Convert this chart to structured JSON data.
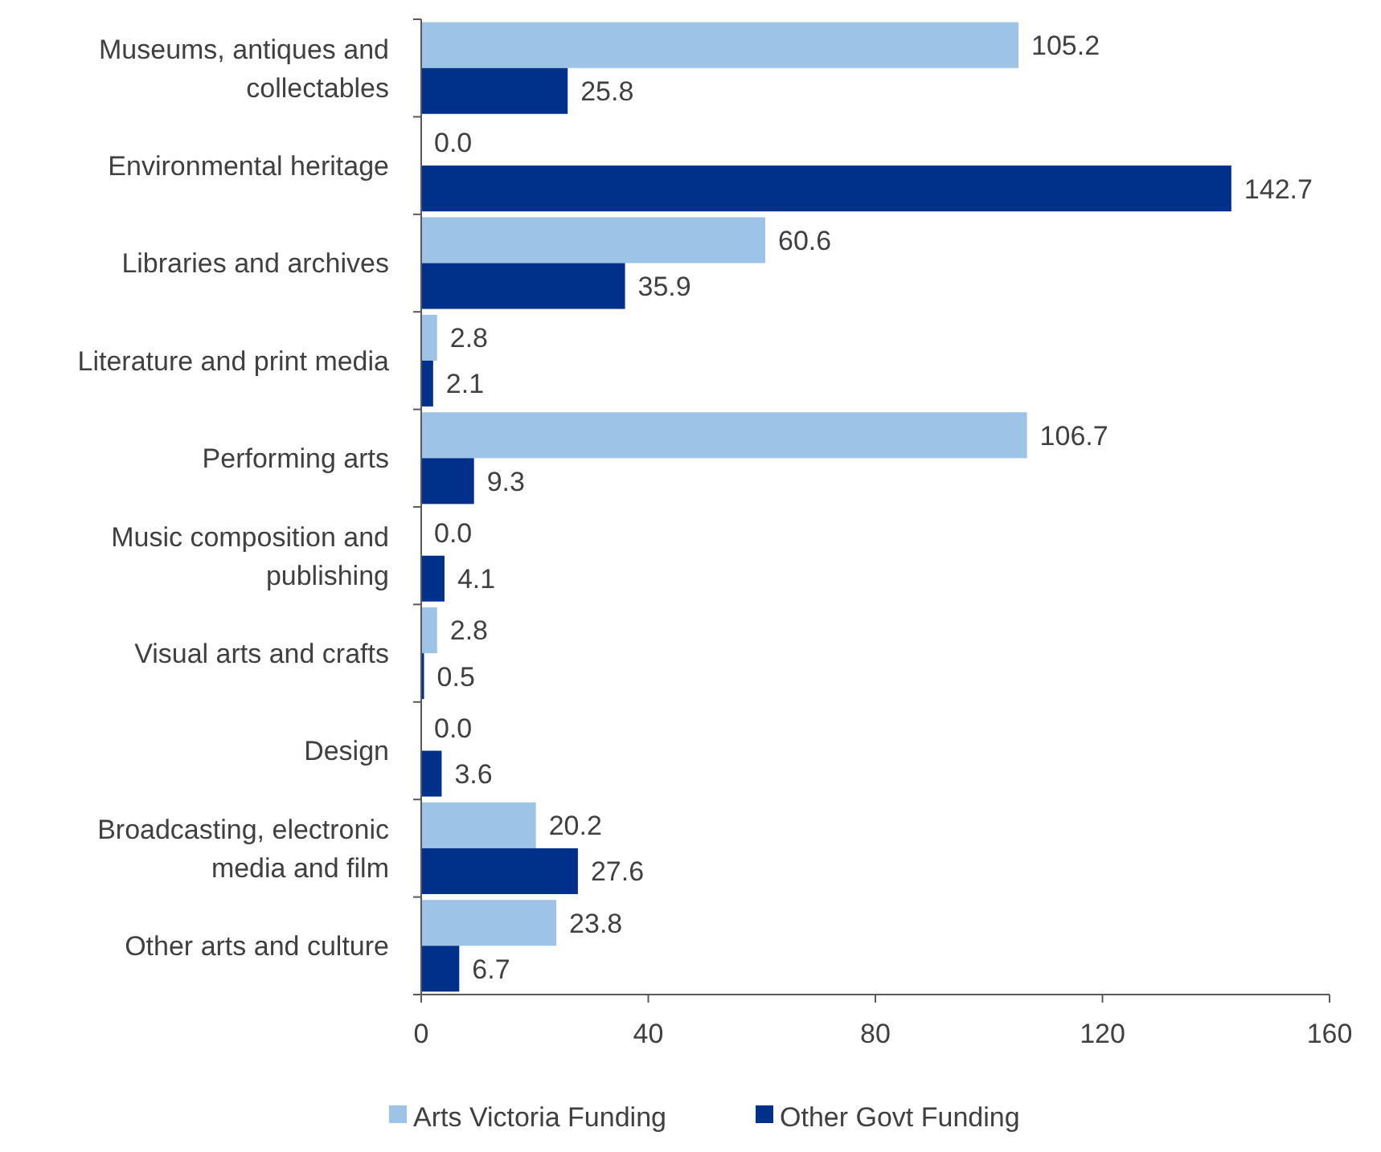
{
  "chart_data": {
    "type": "bar",
    "orientation": "horizontal",
    "categories": [
      "Museums, antiques and collectables",
      "Environmental heritage",
      "Libraries and archives",
      "Literature and print media",
      "Performing arts",
      "Music composition and publishing",
      "Visual arts and crafts",
      "Design",
      "Broadcasting, electronic media and film",
      "Other arts and culture"
    ],
    "series": [
      {
        "name": "Arts Victoria Funding",
        "color": "#9dc3e6",
        "values": [
          105.2,
          0.0,
          60.6,
          2.8,
          106.7,
          0.0,
          2.8,
          0.0,
          20.2,
          23.8
        ],
        "value_labels": [
          "105.2",
          "0.0",
          "60.6",
          "2.8",
          "106.7",
          "0.0",
          "2.8",
          "0.0",
          "20.2",
          "23.8"
        ]
      },
      {
        "name": "Other Govt Funding",
        "color": "#00318a",
        "values": [
          25.8,
          142.7,
          35.9,
          2.1,
          9.3,
          4.1,
          0.5,
          3.6,
          27.6,
          6.7
        ],
        "value_labels": [
          "25.8",
          "142.7",
          "35.9",
          "2.1",
          "9.3",
          "4.1",
          "0.5",
          "3.6",
          "27.6",
          "6.7"
        ]
      }
    ],
    "xlim": [
      0,
      160
    ],
    "xticks": [
      0,
      40,
      80,
      120,
      160
    ],
    "grid": false,
    "legend": "bottom"
  }
}
